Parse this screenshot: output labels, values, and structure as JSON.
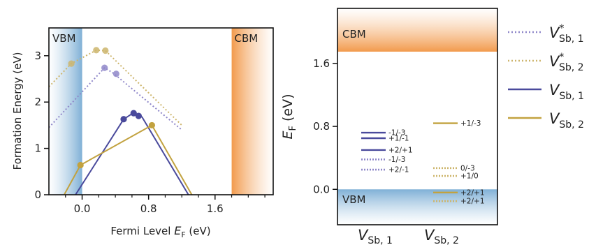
{
  "chart_data": [
    {
      "type": "line",
      "xlabel_prefix": "Fermi Level ",
      "xlabel_var": "E",
      "xlabel_sub": "F",
      "xlabel_unit": " (eV)",
      "ylabel": "Formation Energy (eV)",
      "xlim": [
        -0.4,
        2.3
      ],
      "ylim": [
        0,
        3.6
      ],
      "xticks": [
        0.0,
        0.8,
        1.6
      ],
      "xtick_labels": [
        "0.0",
        "0.8",
        "1.6"
      ],
      "xtick_minor": [
        -0.2,
        0.2,
        0.4,
        0.6,
        1.0,
        1.2,
        1.4,
        1.8,
        2.0,
        2.2
      ],
      "yticks": [
        0,
        1,
        2,
        3
      ],
      "ytick_labels": [
        "0",
        "1",
        "2",
        "3"
      ],
      "bands": [
        {
          "label": "VBM",
          "x0": -0.4,
          "x1": 0.0,
          "color": "#7fb0d6"
        },
        {
          "label": "CBM",
          "x0": 1.8,
          "x1": 2.3,
          "color": "#f29a4c"
        }
      ],
      "series": [
        {
          "legend_index": 0,
          "style": "dotted",
          "color": "#8f87c9",
          "x": [
            -0.4,
            0.27,
            0.37,
            1.2
          ],
          "y": [
            1.45,
            2.74,
            2.63,
            1.4
          ],
          "markers_x": [
            0.27,
            0.41
          ],
          "markers_y": [
            2.74,
            2.61
          ]
        },
        {
          "legend_index": 1,
          "style": "dotted",
          "color": "#cdb56c",
          "x": [
            -0.4,
            -0.13,
            0.17,
            0.28,
            1.2
          ],
          "y": [
            2.33,
            2.83,
            3.12,
            3.11,
            1.5
          ],
          "markers_x": [
            -0.13,
            0.17,
            0.28
          ],
          "markers_y": [
            2.83,
            3.12,
            3.11
          ]
        },
        {
          "legend_index": 2,
          "style": "solid",
          "color": "#4a4a9c",
          "x": [
            -0.4,
            0.5,
            0.61,
            0.72,
            1.28
          ],
          "y": [
            -0.9,
            1.63,
            1.76,
            1.68,
            0.0
          ],
          "markers_x": [
            0.5,
            0.62,
            0.68
          ],
          "markers_y": [
            1.63,
            1.76,
            1.7
          ]
        },
        {
          "legend_index": 3,
          "style": "solid",
          "color": "#c2a23f",
          "x": [
            -0.4,
            -0.02,
            0.84,
            1.32
          ],
          "y": [
            -0.6,
            0.64,
            1.5,
            0.0
          ],
          "markers_x": [
            -0.02,
            0.84
          ],
          "markers_y": [
            0.64,
            1.5
          ]
        }
      ]
    },
    {
      "type": "level-diagram",
      "ylabel_var": "E",
      "ylabel_sub": "F",
      "ylabel_unit": " (eV)",
      "ylim": [
        -0.45,
        2.3
      ],
      "yticks": [
        0.0,
        0.8,
        1.6
      ],
      "ytick_labels": [
        "0.0",
        "0.8",
        "1.6"
      ],
      "bands": [
        {
          "label": "VBM",
          "y0": -0.45,
          "y1": 0.0,
          "color": "#7fb0d6"
        },
        {
          "label": "CBM",
          "y0": 1.75,
          "y1": 2.3,
          "color": "#f29a4c"
        }
      ],
      "columns": [
        {
          "var": "V",
          "sub": "Sb, 1"
        },
        {
          "var": "V",
          "sub": "Sb, 2"
        }
      ],
      "levels": [
        {
          "column": 0,
          "series": 2,
          "style": "solid",
          "E": 0.72,
          "label": "-1/-3"
        },
        {
          "column": 0,
          "series": 2,
          "style": "solid",
          "E": 0.65,
          "label": "+1/-1"
        },
        {
          "column": 0,
          "series": 2,
          "style": "solid",
          "E": 0.5,
          "label": "+2/+1"
        },
        {
          "column": 0,
          "series": 0,
          "style": "dotted",
          "E": 0.38,
          "label": "-1/-3"
        },
        {
          "column": 0,
          "series": 0,
          "style": "dotted",
          "E": 0.25,
          "label": "+2/-1"
        },
        {
          "column": 1,
          "series": 3,
          "style": "solid",
          "E": 0.84,
          "label": "+1/-3"
        },
        {
          "column": 1,
          "series": 1,
          "style": "dotted",
          "E": 0.27,
          "label": "0/-3"
        },
        {
          "column": 1,
          "series": 1,
          "style": "dotted",
          "E": 0.17,
          "label": "+1/0"
        },
        {
          "column": 1,
          "series": 3,
          "style": "solid",
          "E": -0.04,
          "label": "+2/+1"
        },
        {
          "column": 1,
          "series": 1,
          "style": "dotted",
          "E": -0.15,
          "label": "+2/+1"
        }
      ]
    }
  ],
  "legend": [
    {
      "var": "V",
      "sup": "*",
      "sub": "Sb, 1",
      "style": "dotted",
      "color": "#8f87c9"
    },
    {
      "var": "V",
      "sup": "*",
      "sub": "Sb, 2",
      "style": "dotted",
      "color": "#cdb56c"
    },
    {
      "var": "V",
      "sup": "",
      "sub": "Sb, 1",
      "style": "solid",
      "color": "#4a4a9c"
    },
    {
      "var": "V",
      "sup": "",
      "sub": "Sb, 2",
      "style": "solid",
      "color": "#c2a23f"
    }
  ]
}
